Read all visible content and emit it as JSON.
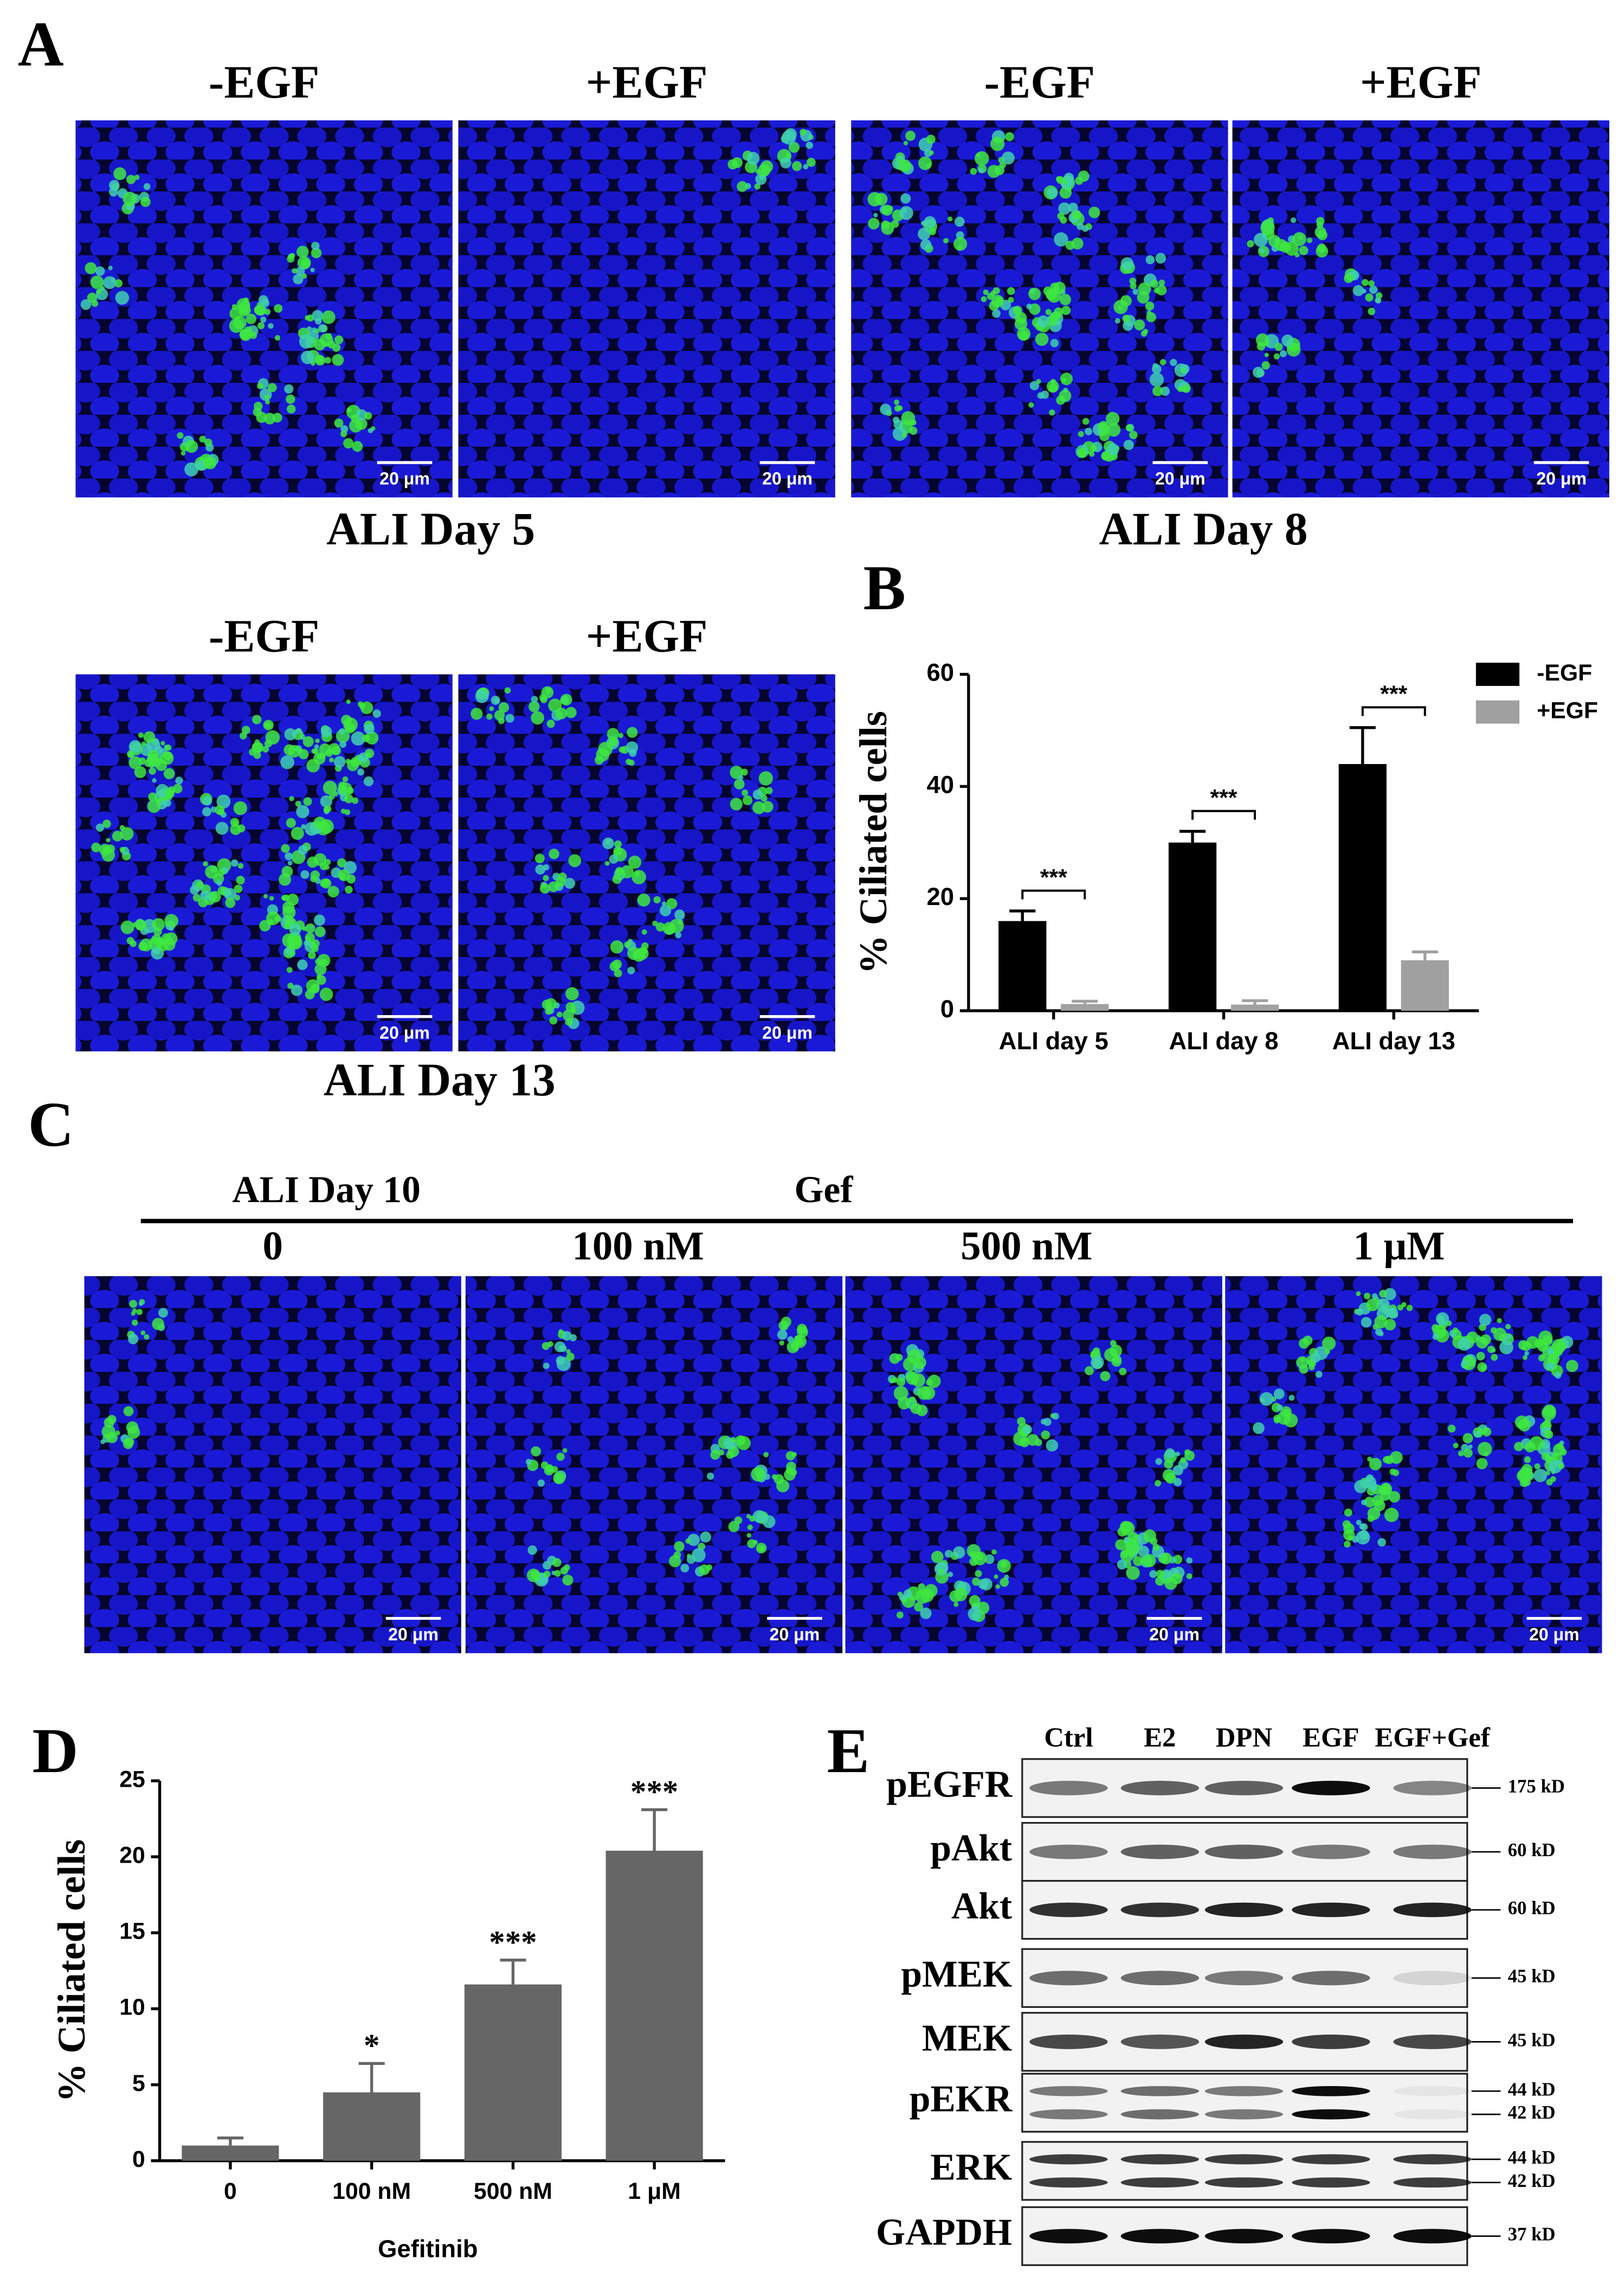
{
  "panel_labels": [
    "A",
    "B",
    "C",
    "D",
    "E"
  ],
  "panel_a": {
    "groups": [
      {
        "caption": "ALI Day 5",
        "images": [
          {
            "label": "-EGF",
            "scale_bar": "20 μm"
          },
          {
            "label": "+EGF",
            "scale_bar": "20 μm"
          }
        ]
      },
      {
        "caption": "ALI Day 8",
        "images": [
          {
            "label": "-EGF",
            "scale_bar": "20 μm"
          },
          {
            "label": "+EGF",
            "scale_bar": "20 μm"
          }
        ]
      },
      {
        "caption": "ALI Day 13",
        "images": [
          {
            "label": "-EGF",
            "scale_bar": "20 μm"
          },
          {
            "label": "+EGF",
            "scale_bar": "20 μm"
          }
        ]
      }
    ]
  },
  "panel_c": {
    "title": "ALI Day 10",
    "drug": "Gef",
    "images": [
      {
        "label": "0",
        "scale_bar": "20 μm"
      },
      {
        "label": "100 nM",
        "scale_bar": "20 μm"
      },
      {
        "label": "500 nM",
        "scale_bar": "20 μm"
      },
      {
        "label": "1 μM",
        "scale_bar": "20 μm"
      }
    ]
  },
  "panel_e": {
    "lanes": [
      "Ctrl",
      "E2",
      "DPN",
      "EGF",
      "EGF+Gef"
    ],
    "rows": [
      {
        "label": "pEGFR",
        "markers": [
          "175 kD"
        ]
      },
      {
        "label": "pAkt",
        "markers": [
          "60 kD"
        ]
      },
      {
        "label": "Akt",
        "markers": [
          "60 kD"
        ]
      },
      {
        "label": "pMEK",
        "markers": [
          "45 kD"
        ]
      },
      {
        "label": "MEK",
        "markers": [
          "45 kD"
        ]
      },
      {
        "label": "pEKR",
        "markers": [
          "44 kD",
          "42 kD"
        ]
      },
      {
        "label": "ERK",
        "markers": [
          "44 kD",
          "42 kD"
        ]
      },
      {
        "label": "GAPDH",
        "markers": [
          "37 kD"
        ]
      }
    ]
  },
  "chart_data": [
    {
      "type": "bar",
      "ylabel": "% Ciliated cells",
      "categories": [
        "ALI day 5",
        "ALI day 8",
        "ALI day 13"
      ],
      "series": [
        {
          "name": "-EGF",
          "color": "#000000",
          "values": [
            16,
            30,
            44
          ],
          "errors": [
            1.8,
            2,
            6.5
          ]
        },
        {
          "name": "+EGF",
          "color": "#a0a0a0",
          "values": [
            1.2,
            1.1,
            9
          ],
          "errors": [
            0.5,
            0.7,
            1.5
          ]
        }
      ],
      "significance": [
        "***",
        "***",
        "***"
      ],
      "ylim": [
        0,
        60
      ],
      "yticks": [
        0,
        20,
        40,
        60
      ],
      "legend": "upper right"
    },
    {
      "type": "bar",
      "ylabel": "% Ciliated cells",
      "xlabel": "Gefitinib",
      "categories": [
        "0",
        "100 nM",
        "500 nM",
        "1 μM"
      ],
      "values": [
        1,
        4.5,
        11.6,
        20.4
      ],
      "errors": [
        0.5,
        1.9,
        1.6,
        2.7
      ],
      "color": "#666666",
      "significance": [
        null,
        "*",
        "***",
        "***"
      ],
      "ylim": [
        0,
        25
      ],
      "yticks": [
        0,
        5,
        10,
        15,
        20,
        25
      ]
    }
  ]
}
